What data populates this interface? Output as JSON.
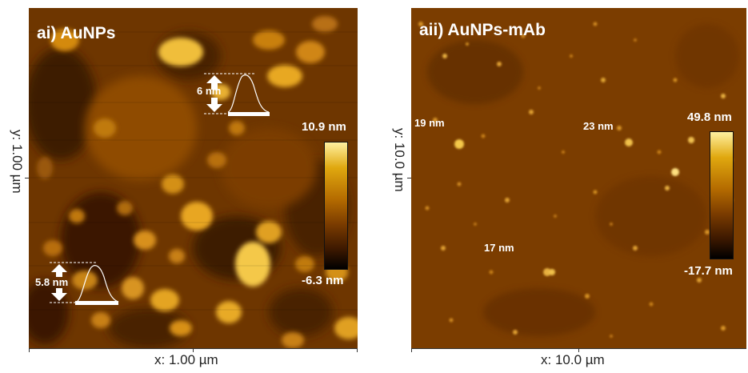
{
  "panel_a": {
    "title": "ai) AuNPs",
    "x_axis_label": "x: 1.00 µm",
    "y_axis_label": "y: 1.00 µm",
    "colorbar": {
      "max_label": "10.9 nm",
      "min_label": "-6.3 nm",
      "colors": [
        "#000000",
        "#3a1700",
        "#7a3b00",
        "#b46b00",
        "#e0a80f",
        "#fff0a0"
      ]
    },
    "annotations": [
      "6 nm",
      "5.8 nm"
    ]
  },
  "panel_b": {
    "title": "aii) AuNPs-mAb",
    "x_axis_label": "x: 10.0 µm",
    "y_axis_label": "y: 10.0 µm",
    "colorbar": {
      "max_label": "49.8 nm",
      "min_label": "-17.7 nm",
      "colors": [
        "#000000",
        "#3a1700",
        "#7a3b00",
        "#b46b00",
        "#e0a80f",
        "#fff0a0"
      ]
    },
    "annotations": [
      "19 nm",
      "23 nm",
      "17 nm"
    ]
  }
}
